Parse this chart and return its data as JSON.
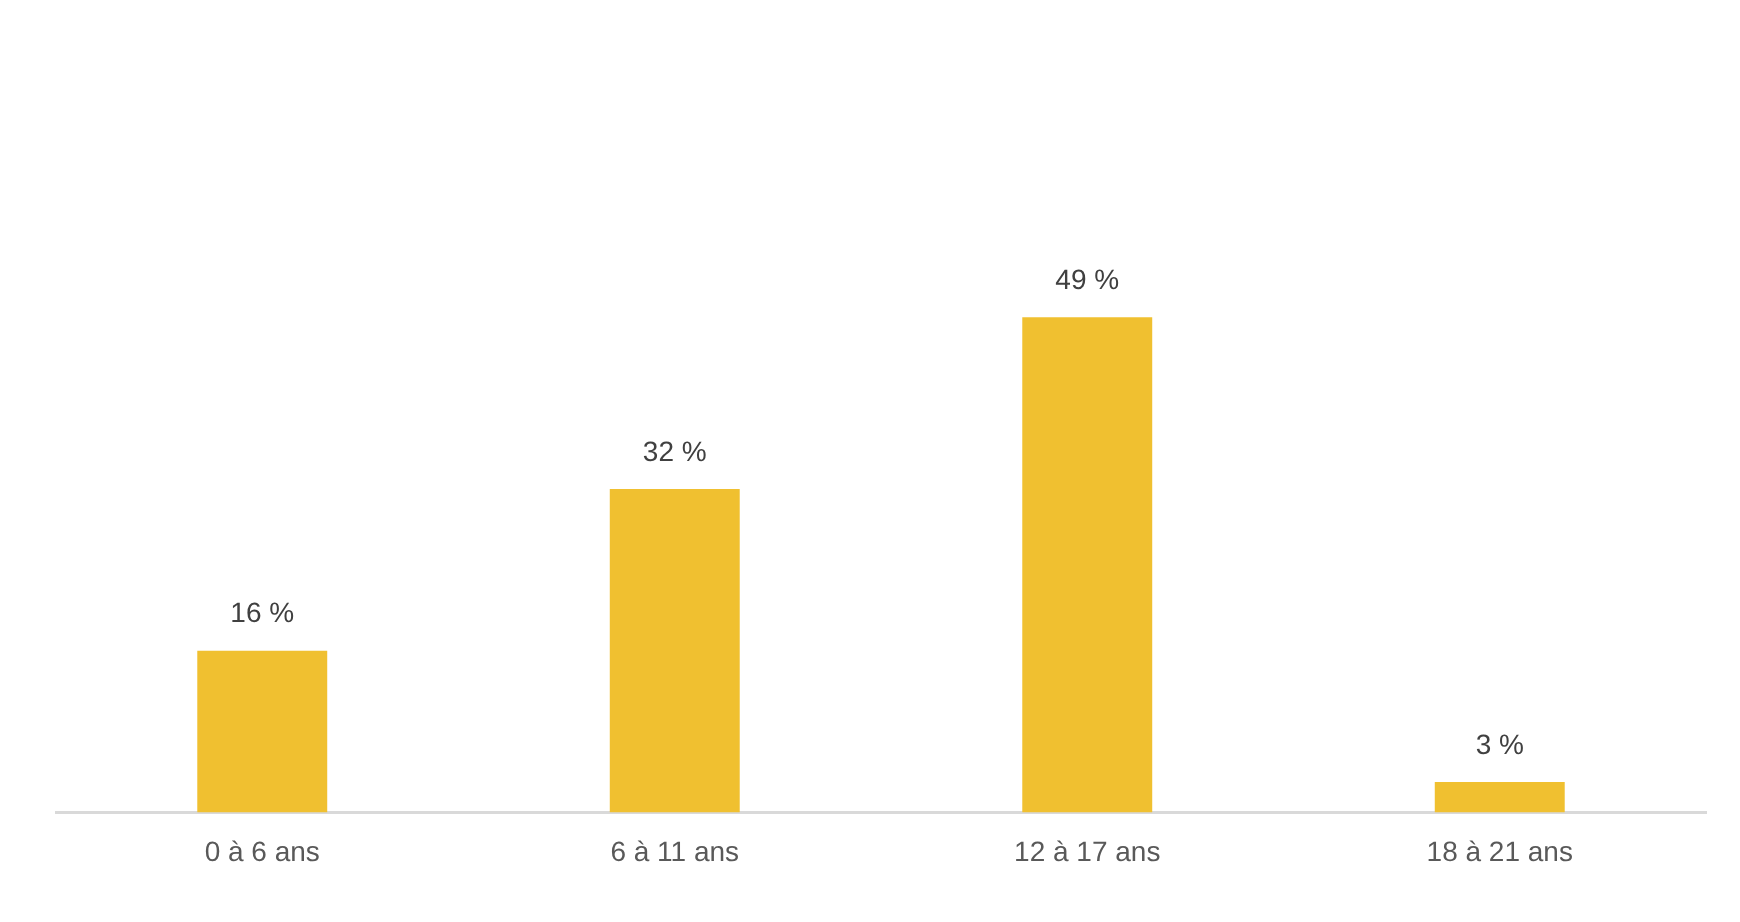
{
  "chart_data": {
    "type": "bar",
    "categories": [
      "0 à 6 ans",
      "6 à 11 ans",
      "12 à 17 ans",
      "18 à 21 ans"
    ],
    "values": [
      16,
      32,
      49,
      3
    ],
    "value_labels": [
      "16 %",
      "32 %",
      "49 %",
      "3 %"
    ],
    "color": "#f0c030",
    "grid": false,
    "legend": false
  }
}
